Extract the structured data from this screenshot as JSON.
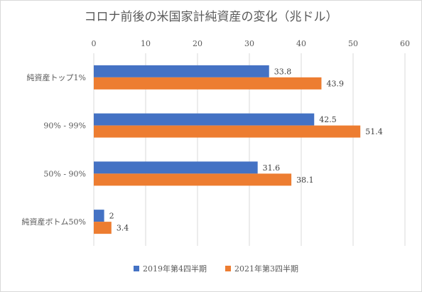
{
  "chart_data": {
    "type": "bar",
    "orientation": "horizontal",
    "title": "コロナ前後の米国家計純資産の変化（兆ドル）",
    "categories": [
      "純資産トップ1%",
      "90% - 99%",
      "50% - 90%",
      "純資産ボトム50%"
    ],
    "series": [
      {
        "name": "2019年第4四半期",
        "values": [
          33.8,
          42.5,
          31.6,
          2
        ],
        "color": "#4472c4"
      },
      {
        "name": "2021年第3四半期",
        "values": [
          43.9,
          51.4,
          38.1,
          3.4
        ],
        "color": "#ed7d31"
      }
    ],
    "xlim": [
      0,
      60
    ],
    "xticks": [
      0,
      10,
      20,
      30,
      40,
      50,
      60
    ],
    "xaxis_position": "top",
    "grid": true,
    "legend_position": "bottom"
  }
}
